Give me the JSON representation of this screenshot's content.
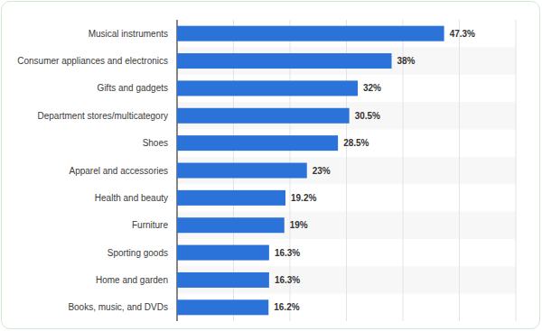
{
  "chart_data": {
    "type": "bar",
    "orientation": "horizontal",
    "categories": [
      "Musical instruments",
      "Consumer appliances and electronics",
      "Gifts and gadgets",
      "Department stores/multicategory",
      "Shoes",
      "Apparel and accessories",
      "Health and beauty",
      "Furniture",
      "Sporting goods",
      "Home and garden",
      "Books, music, and DVDs"
    ],
    "values": [
      47.3,
      38,
      32,
      30.5,
      28.5,
      23,
      19.2,
      19,
      16.3,
      16.3,
      16.2
    ],
    "value_labels": [
      "47.3%",
      "38%",
      "32%",
      "30.5%",
      "28.5%",
      "23%",
      "19.2%",
      "19%",
      "16.3%",
      "16.3%",
      "16.2%"
    ],
    "color": "#2b72d9",
    "xlim": [
      0,
      60
    ],
    "xticks": [
      0,
      10,
      20,
      30,
      40,
      50,
      60
    ],
    "grid": true,
    "data_labels": true,
    "tick_labels": false
  }
}
